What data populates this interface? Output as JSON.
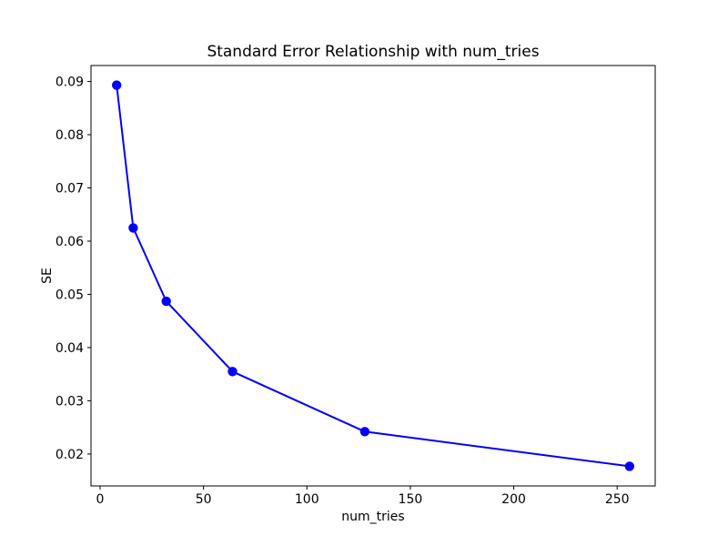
{
  "chart_data": {
    "type": "line",
    "title": "Standard Error Relationship with num_tries",
    "xlabel": "num_tries",
    "ylabel": "SE",
    "x": [
      8,
      16,
      32,
      64,
      128,
      256
    ],
    "y": [
      0.0893,
      0.0625,
      0.0487,
      0.0355,
      0.0242,
      0.0177
    ],
    "xlim": [
      -4.4,
      268.4
    ],
    "ylim": [
      0.014,
      0.093
    ],
    "x_ticks": [
      0,
      50,
      100,
      150,
      200,
      250
    ],
    "y_ticks": [
      0.02,
      0.03,
      0.04,
      0.05,
      0.06,
      0.07,
      0.08,
      0.09
    ],
    "y_tick_decimals": 2,
    "grid": false,
    "legend_position": "none",
    "line_color": "#0000ff",
    "marker": "o",
    "marker_color": "#0000ff",
    "background_color": "#ffffff",
    "text_color": "#000000"
  }
}
